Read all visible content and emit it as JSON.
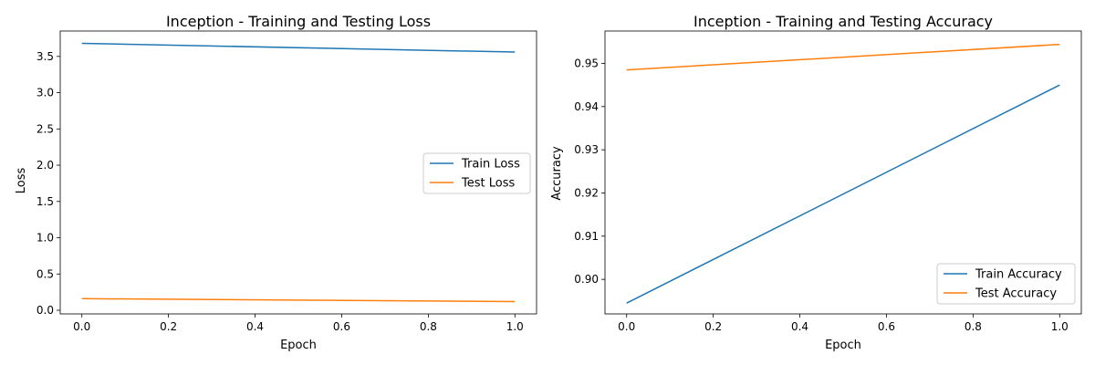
{
  "chart_data": [
    {
      "type": "line",
      "title": "Inception - Training and Testing Loss",
      "xlabel": "Epoch",
      "ylabel": "Loss",
      "x": [
        0,
        1
      ],
      "xlim": [
        -0.05,
        1.05
      ],
      "ylim": [
        -0.05,
        3.85
      ],
      "xticks": [
        0.0,
        0.2,
        0.4,
        0.6,
        0.8,
        1.0
      ],
      "xtick_labels": [
        "0.0",
        "0.2",
        "0.4",
        "0.6",
        "0.8",
        "1.0"
      ],
      "yticks": [
        0.0,
        0.5,
        1.0,
        1.5,
        2.0,
        2.5,
        3.0,
        3.5
      ],
      "ytick_labels": [
        "0.0",
        "0.5",
        "1.0",
        "1.5",
        "2.0",
        "2.5",
        "3.0",
        "3.5"
      ],
      "grid": false,
      "legend": "center-right",
      "series": [
        {
          "name": "Train Loss",
          "values": [
            3.68,
            3.56
          ],
          "color": "#1f77b4"
        },
        {
          "name": "Test Loss",
          "values": [
            0.16,
            0.12
          ],
          "color": "#ff7f0e"
        }
      ]
    },
    {
      "type": "line",
      "title": "Inception - Training and Testing Accuracy",
      "xlabel": "Epoch",
      "ylabel": "Accuracy",
      "x": [
        0,
        1
      ],
      "xlim": [
        -0.05,
        1.05
      ],
      "ylim": [
        0.892,
        0.9575
      ],
      "xticks": [
        0.0,
        0.2,
        0.4,
        0.6,
        0.8,
        1.0
      ],
      "xtick_labels": [
        "0.0",
        "0.2",
        "0.4",
        "0.6",
        "0.8",
        "1.0"
      ],
      "yticks": [
        0.9,
        0.91,
        0.92,
        0.93,
        0.94,
        0.95
      ],
      "ytick_labels": [
        "0.90",
        "0.91",
        "0.92",
        "0.93",
        "0.94",
        "0.95"
      ],
      "grid": false,
      "legend": "lower-right",
      "series": [
        {
          "name": "Train Accuracy",
          "values": [
            0.8945,
            0.945
          ],
          "color": "#1f77b4"
        },
        {
          "name": "Test Accuracy",
          "values": [
            0.9485,
            0.9544
          ],
          "color": "#ff7f0e"
        }
      ]
    }
  ]
}
